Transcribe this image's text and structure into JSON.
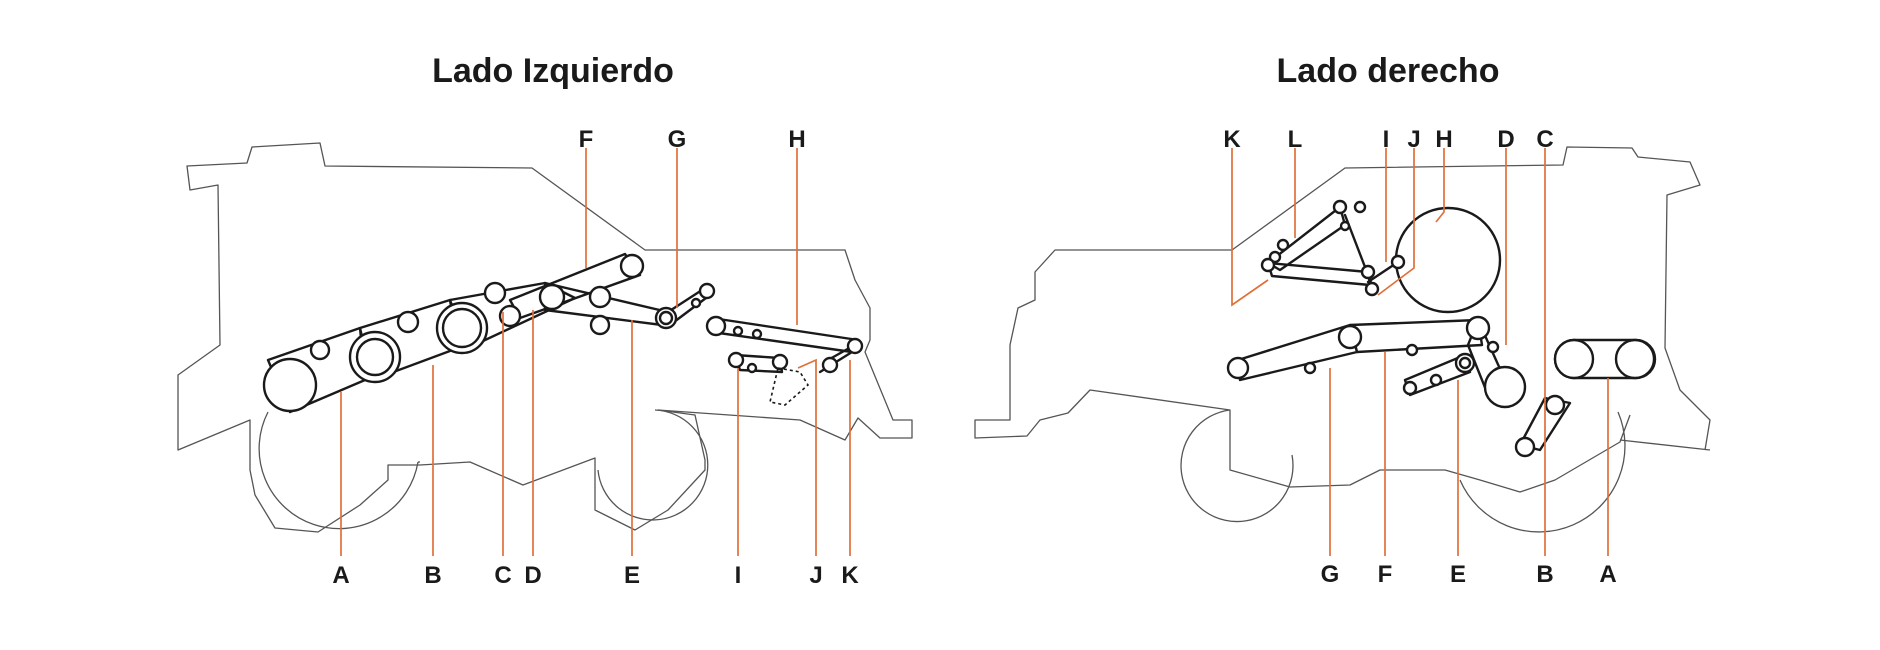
{
  "titles": {
    "left": "Lado Izquierdo",
    "right": "Lado derecho"
  },
  "colors": {
    "leader": "#e0703a",
    "belt": "#1a1a1a",
    "outline": "#555555"
  },
  "left_labels": {
    "top": [
      "F",
      "G",
      "H"
    ],
    "bottom": [
      "A",
      "B",
      "C",
      "D",
      "E",
      "I",
      "J",
      "K"
    ]
  },
  "right_labels": {
    "top": [
      "K",
      "L",
      "I",
      "J",
      "H",
      "D",
      "C"
    ],
    "bottom": [
      "G",
      "F",
      "E",
      "B",
      "A"
    ]
  }
}
